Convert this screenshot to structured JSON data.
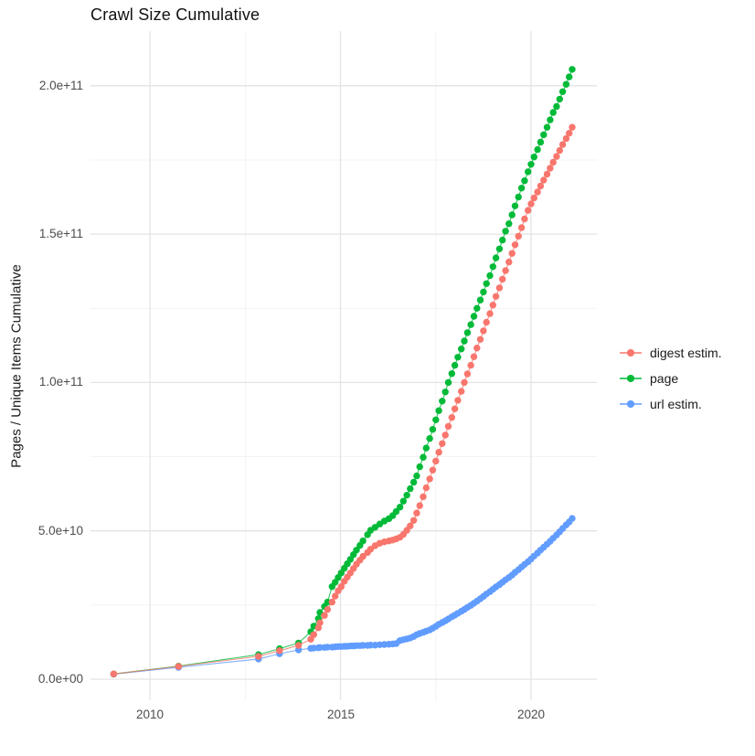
{
  "chart_data": {
    "type": "line",
    "style": "points+line (scatter with connecting lines, ggplot2 look)",
    "title": "Crawl Size Cumulative",
    "xlabel": "",
    "ylabel": "Pages / Unique Items Cumulative",
    "legend_position": "right",
    "grid": true,
    "value_unit_multiplier": 1000000000.0,
    "xlim": [
      2008.45,
      2021.73
    ],
    "ylim": [
      -7000000000.0,
      218000000000.0
    ],
    "x_ticks": {
      "values": [
        2010,
        2015,
        2020
      ],
      "labels": [
        "2010",
        "2015",
        "2020"
      ],
      "minor": [
        2012.5,
        2017.5
      ]
    },
    "y_ticks": {
      "values_billions": [
        0,
        50,
        100,
        150,
        200
      ],
      "labels": [
        "0.0e+00",
        "5.0e+10",
        "1.0e+11",
        "1.5e+11",
        "2.0e+11"
      ],
      "minor_billions": [
        25,
        75,
        125,
        175
      ]
    },
    "x": [
      2009.05,
      2010.75,
      2012.85,
      2013.4,
      2013.9,
      2014.22,
      2014.3,
      2014.42,
      2014.46,
      2014.58,
      2014.66,
      2014.78,
      2014.86,
      2014.94,
      2015.02,
      2015.1,
      2015.18,
      2015.26,
      2015.34,
      2015.42,
      2015.51,
      2015.59,
      2015.71,
      2015.79,
      2015.91,
      2016.03,
      2016.15,
      2016.27,
      2016.37,
      2016.46,
      2016.56,
      2016.65,
      2016.74,
      2016.83,
      2016.92,
      2017.0,
      2017.08,
      2017.17,
      2017.25,
      2017.34,
      2017.42,
      2017.5,
      2017.58,
      2017.67,
      2017.75,
      2017.83,
      2017.92,
      2018.0,
      2018.08,
      2018.17,
      2018.25,
      2018.33,
      2018.42,
      2018.5,
      2018.58,
      2018.67,
      2018.75,
      2018.83,
      2018.92,
      2019.0,
      2019.08,
      2019.17,
      2019.25,
      2019.33,
      2019.42,
      2019.5,
      2019.58,
      2019.67,
      2019.75,
      2019.83,
      2019.92,
      2020.0,
      2020.08,
      2020.17,
      2020.25,
      2020.33,
      2020.42,
      2020.5,
      2020.58,
      2020.67,
      2020.75,
      2020.83,
      2020.92,
      2021.0,
      2021.08
    ],
    "series": [
      {
        "name": "digest estim.",
        "color": "#F8766D",
        "values_billions": [
          1.8,
          4.3,
          7.7,
          9.6,
          11.4,
          13.5,
          15.0,
          17.3,
          19.0,
          21.5,
          23.5,
          26.0,
          28.0,
          29.8,
          31.2,
          33.0,
          34.4,
          35.8,
          37.3,
          38.8,
          40.1,
          41.4,
          42.7,
          43.8,
          45.0,
          45.8,
          46.3,
          46.6,
          46.9,
          47.3,
          47.8,
          48.8,
          50.2,
          51.7,
          53.5,
          56.0,
          58.5,
          61.5,
          64.5,
          67.5,
          70.5,
          73.5,
          76.5,
          79.4,
          82.3,
          85.2,
          88.2,
          91.1,
          94.0,
          97.0,
          100.0,
          102.9,
          105.8,
          108.7,
          111.6,
          114.5,
          117.4,
          120.3,
          123.2,
          126.1,
          129.0,
          131.9,
          134.8,
          137.7,
          140.6,
          143.5,
          146.4,
          149.3,
          152.2,
          155.1,
          158.0,
          160.2,
          162.2,
          164.2,
          166.2,
          168.2,
          170.2,
          172.2,
          174.2,
          176.2,
          178.2,
          180.2,
          182.2,
          184.0,
          186.0
        ]
      },
      {
        "name": "page",
        "color": "#00BA38",
        "values_billions": [
          1.8,
          4.4,
          8.3,
          10.3,
          12.2,
          16.0,
          17.9,
          20.4,
          22.5,
          24.5,
          26.0,
          31.2,
          32.7,
          34.3,
          35.8,
          37.4,
          38.9,
          40.4,
          42.0,
          43.5,
          45.1,
          46.6,
          48.7,
          50.2,
          51.2,
          52.3,
          53.3,
          54.1,
          55.1,
          56.5,
          58.0,
          60.0,
          62.0,
          64.2,
          66.4,
          68.5,
          71.6,
          74.8,
          77.9,
          81.1,
          84.2,
          87.4,
          90.5,
          93.7,
          96.8,
          100.0,
          103.0,
          105.8,
          108.5,
          111.3,
          114.0,
          116.8,
          119.5,
          122.3,
          125.0,
          127.8,
          130.5,
          133.3,
          136.0,
          139.0,
          142.0,
          145.0,
          148.0,
          151.0,
          153.5,
          156.5,
          159.5,
          162.5,
          165.5,
          168.0,
          171.0,
          173.5,
          176.0,
          178.5,
          181.0,
          183.5,
          186.0,
          188.5,
          191.0,
          193.0,
          195.5,
          198.0,
          200.5,
          203.0,
          205.5
        ]
      },
      {
        "name": "url estim.",
        "color": "#619CFF",
        "values_billions": [
          1.7,
          4.0,
          6.8,
          8.6,
          9.9,
          10.4,
          10.5,
          10.6,
          10.7,
          10.7,
          10.8,
          10.8,
          10.9,
          11.0,
          11.0,
          11.1,
          11.1,
          11.2,
          11.2,
          11.3,
          11.3,
          11.4,
          11.4,
          11.5,
          11.5,
          11.6,
          11.7,
          11.8,
          11.9,
          12.0,
          13.0,
          13.3,
          13.6,
          13.9,
          14.4,
          15.0,
          15.4,
          15.8,
          16.2,
          16.6,
          17.2,
          17.8,
          18.5,
          19.1,
          19.7,
          20.3,
          21.0,
          21.6,
          22.2,
          22.9,
          23.5,
          24.2,
          24.9,
          25.6,
          26.3,
          27.1,
          27.9,
          28.7,
          29.5,
          30.3,
          31.1,
          31.9,
          32.7,
          33.5,
          34.3,
          35.1,
          36.0,
          36.9,
          37.8,
          38.7,
          39.6,
          40.5,
          41.5,
          42.5,
          43.5,
          44.5,
          45.5,
          46.5,
          47.5,
          48.6,
          49.7,
          50.8,
          52.0,
          53.0,
          54.2
        ]
      }
    ]
  }
}
